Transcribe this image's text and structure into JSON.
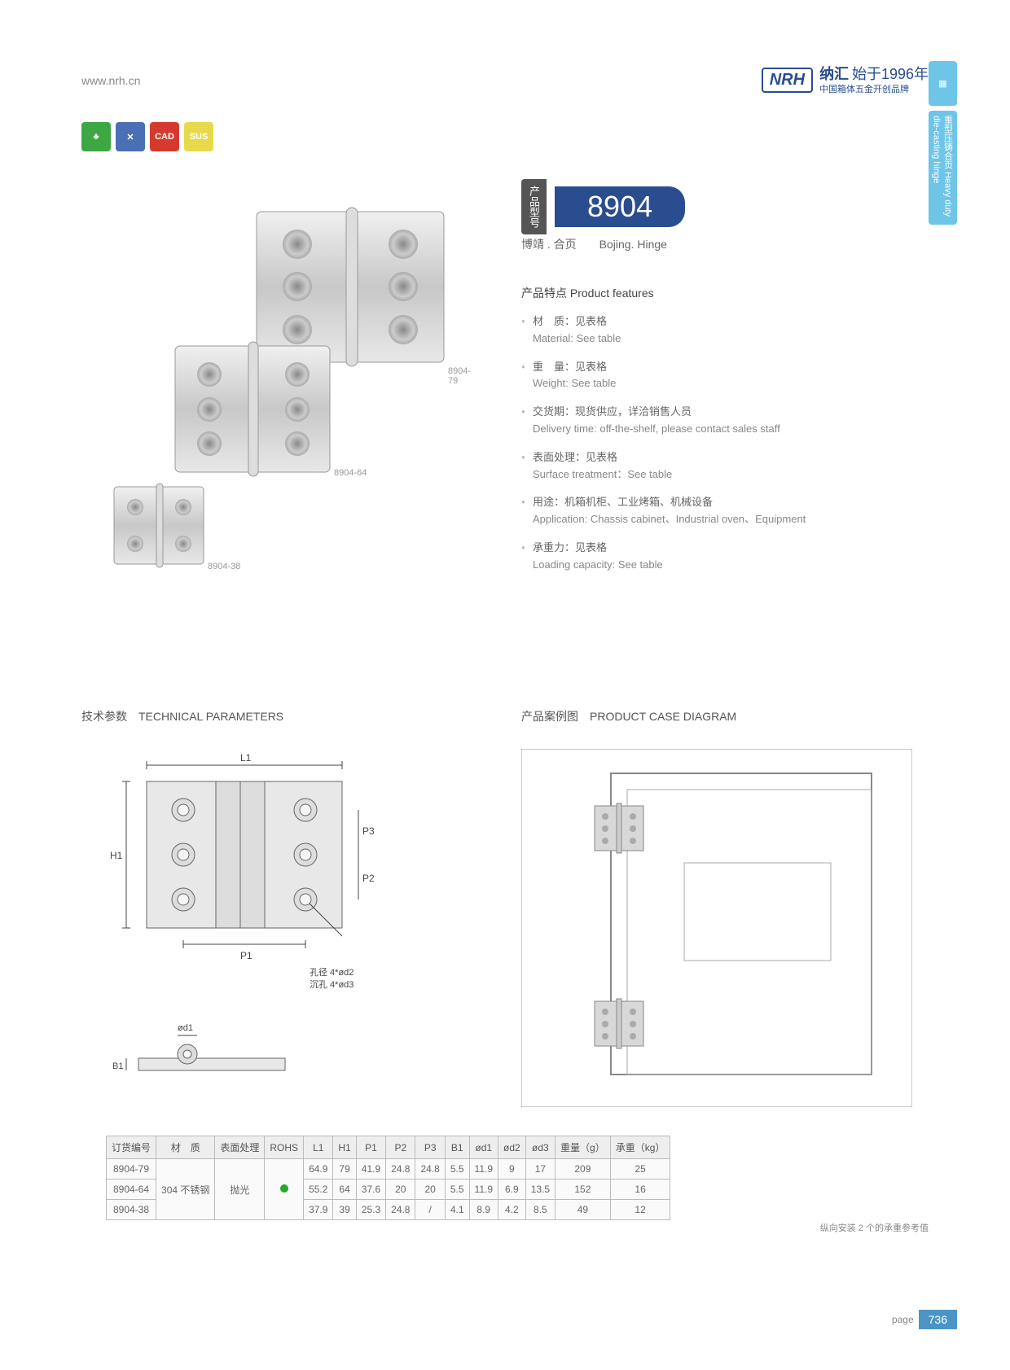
{
  "header": {
    "url": "www.nrh.cn",
    "logo": "NRH",
    "brand_cn": "纳汇",
    "brand_year": "始于1996年",
    "brand_sub": "中国箱体五金开创品牌"
  },
  "side_tabs": {
    "tab1_icon": "▦",
    "tab2": "重型压铸合页 Heavy duty die-casting hinge"
  },
  "icon_badges": [
    {
      "color": "#3da843",
      "text": "♣"
    },
    {
      "color": "#4a6fb5",
      "text": "✕"
    },
    {
      "color": "#d63a2e",
      "text": "CAD"
    },
    {
      "color": "#e8d94a",
      "text": "SUS"
    }
  ],
  "model": {
    "label": "产品型号",
    "number": "8904",
    "subtitle": "博靖 . 合页　　Bojing. Hinge"
  },
  "features": {
    "title": "产品特点 Product features",
    "items": [
      {
        "cn": "材　质：见表格",
        "en": "Material: See table"
      },
      {
        "cn": "重　量：见表格",
        "en": "Weight: See table"
      },
      {
        "cn": "交货期：现货供应，详洽销售人员",
        "en": "Delivery time: off-the-shelf, please contact sales staff"
      },
      {
        "cn": "表面处理：见表格",
        "en": "Surface treatment：See table"
      },
      {
        "cn": "用途：机箱机柜、工业烤箱、机械设备",
        "en": "Application: Chassis cabinet、Industrial oven、Equipment"
      },
      {
        "cn": "承重力：见表格",
        "en": "Loading capacity: See table"
      }
    ]
  },
  "hinge_labels": {
    "a": "8904-79",
    "b": "8904-64",
    "c": "8904-38"
  },
  "sections": {
    "tech": "技术参数　TECHNICAL PARAMETERS",
    "case": "产品案例图　PRODUCT CASE DIAGRAM"
  },
  "tech_annotations": {
    "L1": "L1",
    "H1": "H1",
    "P1": "P1",
    "P2": "P2",
    "P3": "P3",
    "B1": "B1",
    "d1": "ød1",
    "hole_note1": "孔径 4*ød2",
    "hole_note2": "沉孔 4*ød3"
  },
  "table": {
    "headers": [
      "订货编号",
      "材　质",
      "表面处理",
      "ROHS",
      "L1",
      "H1",
      "P1",
      "P2",
      "P3",
      "B1",
      "ød1",
      "ød2",
      "ød3",
      "重量（g）",
      "承重（kg）"
    ],
    "material": "304 不锈钢",
    "surface": "抛光",
    "rows": [
      {
        "code": "8904-79",
        "L1": "64.9",
        "H1": "79",
        "P1": "41.9",
        "P2": "24.8",
        "P3": "24.8",
        "B1": "5.5",
        "d1": "11.9",
        "d2": "9",
        "d3": "17",
        "wt": "209",
        "load": "25"
      },
      {
        "code": "8904-64",
        "L1": "55.2",
        "H1": "64",
        "P1": "37.6",
        "P2": "20",
        "P3": "20",
        "B1": "5.5",
        "d1": "11.9",
        "d2": "6.9",
        "d3": "13.5",
        "wt": "152",
        "load": "16"
      },
      {
        "code": "8904-38",
        "L1": "37.9",
        "H1": "39",
        "P1": "25.3",
        "P2": "24.8",
        "P3": "/",
        "B1": "4.1",
        "d1": "8.9",
        "d2": "4.2",
        "d3": "8.5",
        "wt": "49",
        "load": "12"
      }
    ],
    "note": "纵向安装 2 个的承重参考值"
  },
  "footer": {
    "page_label": "page",
    "page_number": "736"
  }
}
